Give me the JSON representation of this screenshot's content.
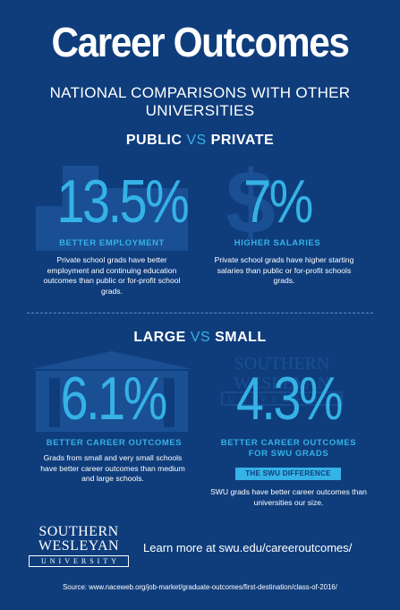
{
  "header": {
    "title": "Career Outcomes",
    "subtitle": "NATIONAL COMPARISONS WITH OTHER UNIVERSITIES"
  },
  "sections": {
    "public_private": {
      "left_word": "PUBLIC",
      "vs_word": "VS",
      "right_word": "PRIVATE",
      "left_stat": {
        "value": "13.5%",
        "label": "BETTER EMPLOYMENT",
        "description": "Private school grads have better employment and continuing education outcomes than public or for-profit school grads."
      },
      "right_stat": {
        "value": "7%",
        "label": "HIGHER SALARIES",
        "description": "Private school grads have higher starting salaries than public or for-profit schools grads."
      }
    },
    "large_small": {
      "left_word": "LARGE",
      "vs_word": "VS",
      "right_word": "SMALL",
      "left_stat": {
        "value": "6.1%",
        "label": "BETTER CAREER OUTCOMES",
        "description": "Grads from small and very small schools have better career outcomes than medium and large schools."
      },
      "right_stat": {
        "value": "4.3%",
        "label_line1": "BETTER CAREER OUTCOMES",
        "label_line2": "FOR SWU GRADS",
        "badge": "THE SWU DIFFERENCE",
        "description": "SWU grads have better career outcomes than universities our size."
      }
    }
  },
  "footer": {
    "logo_line1": "SOUTHERN",
    "logo_line2": "WESLEYAN",
    "logo_line3": "UNIVERSITY",
    "learn_more": "Learn more at swu.edu/careeroutcomes/",
    "source": "Source: www.naceweb.org/job-market/graduate-outcomes/first-destination/class-of-2016/"
  },
  "colors": {
    "background": "#0f3d7c",
    "accent": "#35b2e6",
    "icon_tint": "#1a4f94"
  },
  "icons": [
    "building-icon",
    "dollar-icon",
    "large-building-icon",
    "swu-watermark-icon"
  ]
}
